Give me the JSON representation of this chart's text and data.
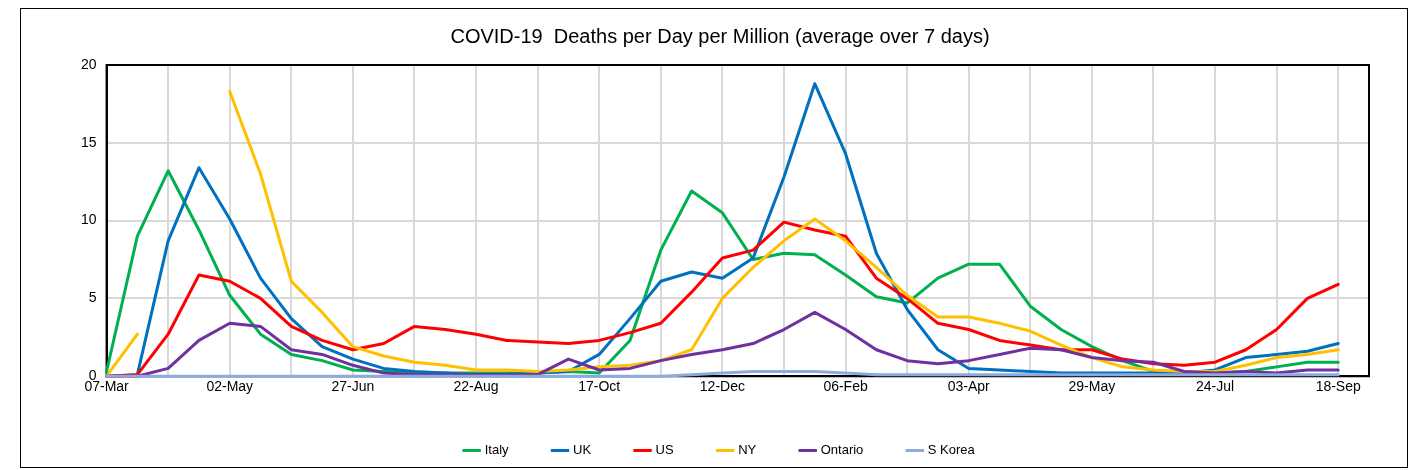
{
  "chart_data": {
    "type": "line",
    "title": "COVID-19  Deaths per Day per Million (average over 7 days)",
    "categories": [
      "07-Mar",
      null,
      null,
      null,
      "02-May",
      null,
      null,
      null,
      "27-Jun",
      null,
      null,
      null,
      "22-Aug",
      null,
      null,
      null,
      "17-Oct",
      null,
      null,
      null,
      "12-Dec",
      null,
      null,
      null,
      "06-Feb",
      null,
      null,
      null,
      "03-Apr",
      null,
      null,
      null,
      "29-May",
      null,
      null,
      null,
      "24-Jul",
      null,
      null,
      null,
      "18-Sep",
      null
    ],
    "series": [
      {
        "name": "Italy",
        "color": "#00b050",
        "values": [
          0.3,
          9.0,
          13.2,
          9.4,
          5.2,
          2.7,
          1.4,
          1.0,
          0.4,
          0.3,
          0.2,
          0.2,
          0.2,
          0.2,
          0.2,
          0.3,
          0.2,
          2.3,
          8.1,
          11.9,
          10.5,
          7.5,
          7.9,
          7.8,
          6.5,
          5.1,
          4.7,
          6.3,
          7.2,
          7.2,
          4.5,
          3.0,
          1.9,
          1.0,
          0.3,
          0.2,
          0.2,
          0.3,
          0.6,
          0.9,
          0.9,
          null
        ]
      },
      {
        "name": "UK",
        "color": "#0070c0",
        "values": [
          0,
          0.1,
          8.7,
          13.4,
          10.1,
          6.3,
          3.7,
          1.9,
          1.1,
          0.5,
          0.3,
          0.2,
          0.1,
          0.1,
          0.2,
          0.3,
          1.4,
          3.7,
          6.1,
          6.7,
          6.3,
          7.6,
          12.8,
          18.8,
          14.3,
          7.9,
          4.3,
          1.7,
          0.5,
          0.4,
          0.3,
          0.2,
          0.2,
          0.2,
          0.2,
          0.2,
          0.4,
          1.2,
          1.4,
          1.6,
          2.1,
          null
        ]
      },
      {
        "name": "US",
        "color": "#ff0000",
        "values": [
          0,
          0.1,
          2.7,
          6.5,
          6.1,
          5.0,
          3.2,
          2.3,
          1.7,
          2.1,
          3.2,
          3.0,
          2.7,
          2.3,
          2.2,
          2.1,
          2.3,
          2.8,
          3.4,
          5.4,
          7.6,
          8.1,
          9.9,
          9.4,
          9.0,
          6.3,
          5.0,
          3.4,
          3.0,
          2.3,
          2.0,
          1.7,
          1.7,
          1.1,
          0.8,
          0.7,
          0.9,
          1.7,
          3.0,
          5.0,
          5.9,
          null
        ]
      },
      {
        "name": "NY",
        "color": "#ffc000",
        "values": [
          0,
          2.7,
          null,
          null,
          18.3,
          13.0,
          6.1,
          4.1,
          1.9,
          1.3,
          0.9,
          0.7,
          0.4,
          0.4,
          0.3,
          0.4,
          0.6,
          0.7,
          1.0,
          1.7,
          5.0,
          7.0,
          8.7,
          10.1,
          8.7,
          7.0,
          5.2,
          3.8,
          3.8,
          3.4,
          2.9,
          2.0,
          1.2,
          0.6,
          0.4,
          0.3,
          0.3,
          0.7,
          1.2,
          1.4,
          1.7,
          null
        ]
      },
      {
        "name": "Ontario",
        "color": "#7030a0",
        "values": [
          0,
          0,
          0.5,
          2.3,
          3.4,
          3.2,
          1.7,
          1.4,
          0.7,
          0.2,
          0.1,
          0.1,
          0.1,
          0.1,
          0.1,
          1.1,
          0.4,
          0.5,
          1.0,
          1.4,
          1.7,
          2.1,
          3.0,
          4.1,
          3.0,
          1.7,
          1.0,
          0.8,
          1.0,
          1.4,
          1.8,
          1.7,
          1.2,
          1.0,
          0.9,
          0.3,
          0.2,
          0.3,
          0.2,
          0.4,
          0.4,
          null
        ]
      },
      {
        "name": "S Korea",
        "color": "#8eaadb",
        "values": [
          0,
          0,
          0,
          0,
          0,
          0,
          0,
          0,
          0,
          0,
          0,
          0,
          0,
          0,
          0,
          0,
          0,
          0,
          0,
          0.1,
          0.2,
          0.3,
          0.3,
          0.3,
          0.2,
          0.1,
          0.1,
          0.1,
          0.1,
          0.1,
          0.1,
          0.1,
          0.1,
          0.1,
          0.1,
          0.1,
          0.1,
          0.1,
          0.1,
          0.1,
          0.1,
          null
        ]
      }
    ],
    "ylim": [
      0,
      20
    ],
    "yticks": [
      0,
      5,
      10,
      15,
      20
    ],
    "grid": true,
    "legend": "bottom",
    "marker": "none",
    "line_style": "solid"
  }
}
